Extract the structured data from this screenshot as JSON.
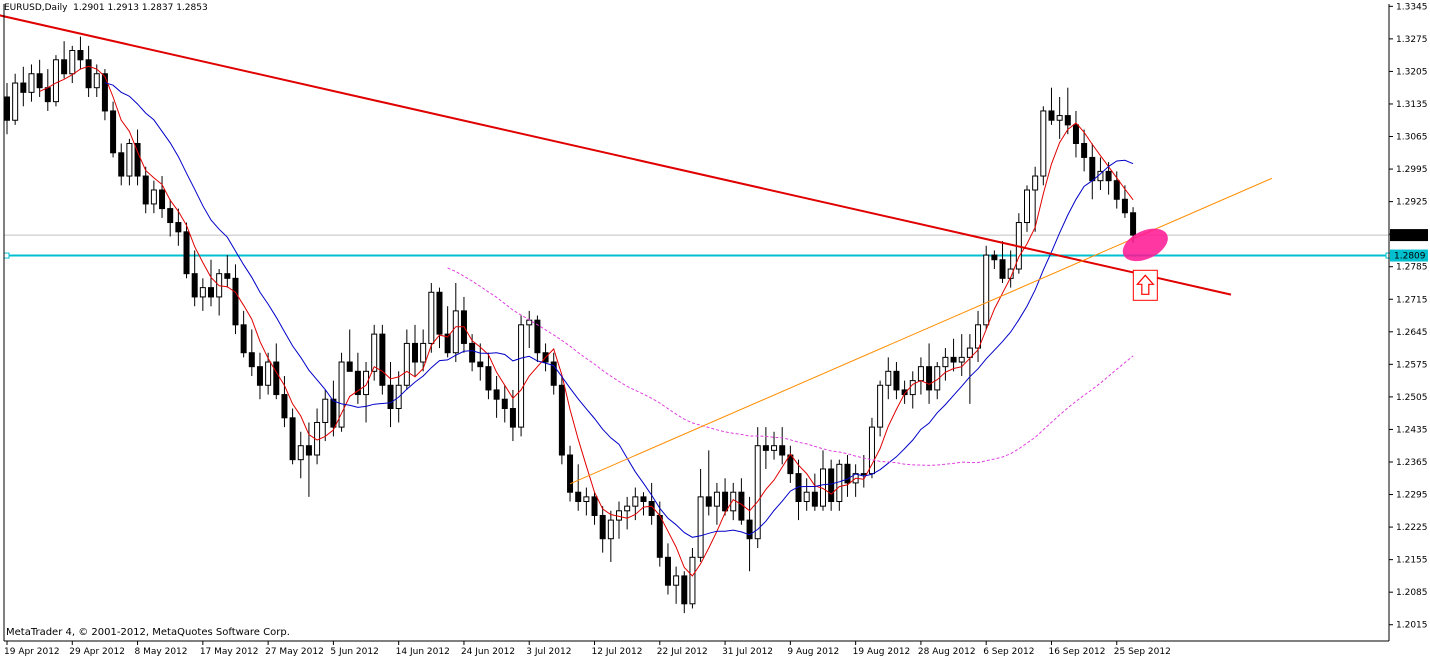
{
  "header": {
    "symbol": "EURUSD,Daily",
    "ohlc": "1.2901 1.2913 1.2837 1.2853"
  },
  "footer": {
    "copyright": "MetaTrader 4, © 2001-2012, MetaQuotes Software Corp."
  },
  "colors": {
    "background": "#ffffff",
    "bull_body": "#ffffff",
    "bear_body": "#000000",
    "wick": "#000000",
    "ma_fast": "#e00000",
    "ma_slow": "#0000c8",
    "ma_long": "#e040e0",
    "trend_down": "#e00000",
    "trend_up": "#ff8c00",
    "support_line": "#00c0d0",
    "current_price_line": "#c0c0c0",
    "highlight": "#ff1493",
    "arrow": "#ff0000"
  },
  "icons": {
    "signal_arrow": "up-arrow-icon"
  },
  "chart_data": {
    "type": "candlestick",
    "symbol": "EURUSD",
    "timeframe": "Daily",
    "ylim": [
      1.198,
      1.335
    ],
    "y_ticks": [
      "1.3345",
      "1.3275",
      "1.3205",
      "1.3135",
      "1.3065",
      "1.2995",
      "1.2925",
      "1.2855",
      "1.2785",
      "1.2715",
      "1.2645",
      "1.2575",
      "1.2505",
      "1.2435",
      "1.2365",
      "1.2295",
      "1.2225",
      "1.2155",
      "1.2085",
      "1.2015"
    ],
    "x_ticks": [
      {
        "i": 0,
        "label": "19 Apr 2012"
      },
      {
        "i": 8,
        "label": "29 Apr 2012"
      },
      {
        "i": 16,
        "label": "8 May 2012"
      },
      {
        "i": 24,
        "label": "17 May 2012"
      },
      {
        "i": 32,
        "label": "27 May 2012"
      },
      {
        "i": 40,
        "label": "5 Jun 2012"
      },
      {
        "i": 48,
        "label": "14 Jun 2012"
      },
      {
        "i": 56,
        "label": "24 Jun 2012"
      },
      {
        "i": 64,
        "label": "3 Jul 2012"
      },
      {
        "i": 72,
        "label": "12 Jul 2012"
      },
      {
        "i": 80,
        "label": "22 Jul 2012"
      },
      {
        "i": 88,
        "label": "31 Jul 2012"
      },
      {
        "i": 96,
        "label": "9 Aug 2012"
      },
      {
        "i": 104,
        "label": "19 Aug 2012"
      },
      {
        "i": 112,
        "label": "28 Aug 2012"
      },
      {
        "i": 120,
        "label": "6 Sep 2012"
      },
      {
        "i": 128,
        "label": "16 Sep 2012"
      },
      {
        "i": 136,
        "label": "25 Sep 2012"
      }
    ],
    "candles": [
      [
        1.315,
        1.318,
        1.307,
        1.31
      ],
      [
        1.31,
        1.32,
        1.309,
        1.318
      ],
      [
        1.318,
        1.3215,
        1.313,
        1.316
      ],
      [
        1.316,
        1.322,
        1.314,
        1.32
      ],
      [
        1.32,
        1.323,
        1.315,
        1.317
      ],
      [
        1.317,
        1.321,
        1.312,
        1.314
      ],
      [
        1.314,
        1.324,
        1.313,
        1.323
      ],
      [
        1.323,
        1.327,
        1.319,
        1.32
      ],
      [
        1.32,
        1.326,
        1.318,
        1.325
      ],
      [
        1.325,
        1.328,
        1.321,
        1.323
      ],
      [
        1.323,
        1.326,
        1.315,
        1.317
      ],
      [
        1.317,
        1.322,
        1.315,
        1.32
      ],
      [
        1.32,
        1.321,
        1.31,
        1.312
      ],
      [
        1.312,
        1.314,
        1.302,
        1.303
      ],
      [
        1.303,
        1.305,
        1.296,
        1.298
      ],
      [
        1.298,
        1.306,
        1.296,
        1.305
      ],
      [
        1.305,
        1.308,
        1.296,
        1.298
      ],
      [
        1.298,
        1.3,
        1.29,
        1.292
      ],
      [
        1.292,
        1.297,
        1.29,
        1.295
      ],
      [
        1.295,
        1.298,
        1.289,
        1.291
      ],
      [
        1.291,
        1.293,
        1.285,
        1.288
      ],
      [
        1.288,
        1.291,
        1.283,
        1.286
      ],
      [
        1.286,
        1.288,
        1.276,
        1.277
      ],
      [
        1.277,
        1.282,
        1.27,
        1.272
      ],
      [
        1.272,
        1.276,
        1.269,
        1.274
      ],
      [
        1.274,
        1.28,
        1.27,
        1.272
      ],
      [
        1.272,
        1.278,
        1.268,
        1.277
      ],
      [
        1.277,
        1.281,
        1.274,
        1.276
      ],
      [
        1.276,
        1.279,
        1.264,
        1.266
      ],
      [
        1.266,
        1.269,
        1.259,
        1.26
      ],
      [
        1.26,
        1.265,
        1.255,
        1.257
      ],
      [
        1.257,
        1.26,
        1.25,
        1.253
      ],
      [
        1.253,
        1.26,
        1.251,
        1.258
      ],
      [
        1.258,
        1.262,
        1.25,
        1.251
      ],
      [
        1.251,
        1.255,
        1.244,
        1.246
      ],
      [
        1.246,
        1.248,
        1.236,
        1.237
      ],
      [
        1.237,
        1.243,
        1.233,
        1.24
      ],
      [
        1.24,
        1.245,
        1.229,
        1.238
      ],
      [
        1.238,
        1.248,
        1.236,
        1.245
      ],
      [
        1.245,
        1.252,
        1.241,
        1.25
      ],
      [
        1.25,
        1.254,
        1.242,
        1.244
      ],
      [
        1.244,
        1.26,
        1.243,
        1.258
      ],
      [
        1.258,
        1.265,
        1.256,
        1.256
      ],
      [
        1.256,
        1.26,
        1.249,
        1.251
      ],
      [
        1.251,
        1.258,
        1.245,
        1.256
      ],
      [
        1.256,
        1.266,
        1.254,
        1.264
      ],
      [
        1.264,
        1.266,
        1.251,
        1.253
      ],
      [
        1.253,
        1.258,
        1.244,
        1.248
      ],
      [
        1.248,
        1.256,
        1.245,
        1.253
      ],
      [
        1.253,
        1.265,
        1.252,
        1.262
      ],
      [
        1.262,
        1.266,
        1.255,
        1.258
      ],
      [
        1.258,
        1.265,
        1.256,
        1.262
      ],
      [
        1.262,
        1.275,
        1.26,
        1.273
      ],
      [
        1.273,
        1.274,
        1.261,
        1.264
      ],
      [
        1.264,
        1.27,
        1.259,
        1.26
      ],
      [
        1.26,
        1.275,
        1.258,
        1.269
      ],
      [
        1.269,
        1.272,
        1.26,
        1.262
      ],
      [
        1.262,
        1.264,
        1.256,
        1.258
      ],
      [
        1.258,
        1.262,
        1.254,
        1.257
      ],
      [
        1.257,
        1.26,
        1.25,
        1.252
      ],
      [
        1.252,
        1.255,
        1.246,
        1.25
      ],
      [
        1.25,
        1.253,
        1.245,
        1.248
      ],
      [
        1.248,
        1.252,
        1.241,
        1.244
      ],
      [
        1.244,
        1.268,
        1.242,
        1.266
      ],
      [
        1.266,
        1.269,
        1.261,
        1.267
      ],
      [
        1.267,
        1.268,
        1.258,
        1.26
      ],
      [
        1.26,
        1.262,
        1.256,
        1.258
      ],
      [
        1.258,
        1.26,
        1.251,
        1.253
      ],
      [
        1.253,
        1.255,
        1.236,
        1.238
      ],
      [
        1.238,
        1.24,
        1.228,
        1.23
      ],
      [
        1.23,
        1.236,
        1.226,
        1.228
      ],
      [
        1.228,
        1.231,
        1.225,
        1.229
      ],
      [
        1.229,
        1.23,
        1.223,
        1.225
      ],
      [
        1.225,
        1.227,
        1.217,
        1.22
      ],
      [
        1.22,
        1.226,
        1.215,
        1.224
      ],
      [
        1.224,
        1.228,
        1.22,
        1.226
      ],
      [
        1.226,
        1.229,
        1.222,
        1.227
      ],
      [
        1.227,
        1.231,
        1.224,
        1.229
      ],
      [
        1.229,
        1.23,
        1.225,
        1.228
      ],
      [
        1.228,
        1.232,
        1.223,
        1.225
      ],
      [
        1.225,
        1.228,
        1.214,
        1.216
      ],
      [
        1.216,
        1.219,
        1.208,
        1.21
      ],
      [
        1.21,
        1.214,
        1.206,
        1.212
      ],
      [
        1.212,
        1.213,
        1.204,
        1.206
      ],
      [
        1.206,
        1.218,
        1.205,
        1.216
      ],
      [
        1.216,
        1.235,
        1.215,
        1.229
      ],
      [
        1.229,
        1.239,
        1.225,
        1.227
      ],
      [
        1.227,
        1.232,
        1.223,
        1.23
      ],
      [
        1.23,
        1.233,
        1.225,
        1.226
      ],
      [
        1.226,
        1.232,
        1.224,
        1.23
      ],
      [
        1.23,
        1.233,
        1.223,
        1.224
      ],
      [
        1.224,
        1.229,
        1.213,
        1.22
      ],
      [
        1.22,
        1.244,
        1.218,
        1.24
      ],
      [
        1.24,
        1.244,
        1.235,
        1.239
      ],
      [
        1.239,
        1.243,
        1.237,
        1.24
      ],
      [
        1.24,
        1.244,
        1.236,
        1.238
      ],
      [
        1.238,
        1.24,
        1.232,
        1.234
      ],
      [
        1.234,
        1.237,
        1.224,
        1.228
      ],
      [
        1.228,
        1.233,
        1.226,
        1.23
      ],
      [
        1.23,
        1.234,
        1.226,
        1.227
      ],
      [
        1.227,
        1.239,
        1.226,
        1.235
      ],
      [
        1.235,
        1.237,
        1.226,
        1.228
      ],
      [
        1.228,
        1.237,
        1.226,
        1.236
      ],
      [
        1.236,
        1.238,
        1.229,
        1.232
      ],
      [
        1.232,
        1.236,
        1.229,
        1.234
      ],
      [
        1.234,
        1.238,
        1.231,
        1.234
      ],
      [
        1.234,
        1.246,
        1.233,
        1.244
      ],
      [
        1.244,
        1.254,
        1.242,
        1.253
      ],
      [
        1.253,
        1.259,
        1.25,
        1.256
      ],
      [
        1.256,
        1.258,
        1.25,
        1.252
      ],
      [
        1.252,
        1.254,
        1.249,
        1.251
      ],
      [
        1.251,
        1.256,
        1.248,
        1.254
      ],
      [
        1.254,
        1.259,
        1.251,
        1.257
      ],
      [
        1.257,
        1.262,
        1.249,
        1.252
      ],
      [
        1.252,
        1.258,
        1.25,
        1.257
      ],
      [
        1.257,
        1.261,
        1.254,
        1.259
      ],
      [
        1.259,
        1.263,
        1.256,
        1.258
      ],
      [
        1.258,
        1.264,
        1.255,
        1.259
      ],
      [
        1.259,
        1.264,
        1.249,
        1.261
      ],
      [
        1.261,
        1.269,
        1.258,
        1.266
      ],
      [
        1.266,
        1.283,
        1.265,
        1.281
      ],
      [
        1.281,
        1.282,
        1.278,
        1.28
      ],
      [
        1.28,
        1.284,
        1.275,
        1.276
      ],
      [
        1.276,
        1.282,
        1.274,
        1.278
      ],
      [
        1.278,
        1.29,
        1.277,
        1.288
      ],
      [
        1.288,
        1.296,
        1.286,
        1.295
      ],
      [
        1.295,
        1.3,
        1.286,
        1.298
      ],
      [
        1.298,
        1.313,
        1.296,
        1.312
      ],
      [
        1.312,
        1.317,
        1.309,
        1.31
      ],
      [
        1.31,
        1.315,
        1.306,
        1.311
      ],
      [
        1.311,
        1.317,
        1.307,
        1.309
      ],
      [
        1.309,
        1.312,
        1.302,
        1.305
      ],
      [
        1.305,
        1.308,
        1.299,
        1.302
      ],
      [
        1.302,
        1.305,
        1.293,
        1.297
      ],
      [
        1.297,
        1.302,
        1.295,
        1.299
      ],
      [
        1.299,
        1.301,
        1.294,
        1.297
      ],
      [
        1.297,
        1.299,
        1.291,
        1.293
      ],
      [
        1.293,
        1.296,
        1.289,
        1.2901
      ],
      [
        1.2901,
        1.2913,
        1.2837,
        1.2853
      ]
    ],
    "indicators": [
      {
        "type": "moving_average",
        "color_key": "ma_fast",
        "period": 5
      },
      {
        "type": "moving_average",
        "color_key": "ma_slow",
        "period": 13
      },
      {
        "type": "moving_average",
        "color_key": "ma_long",
        "period": 55,
        "style": "dashed"
      }
    ],
    "lines": [
      {
        "type": "trendline",
        "color_key": "trend_down",
        "from": [
          -2,
          1.333
        ],
        "to": [
          150,
          1.2725
        ]
      },
      {
        "type": "trendline",
        "color_key": "trend_up",
        "from": [
          69,
          1.2318
        ],
        "to": [
          155,
          1.2975
        ]
      },
      {
        "type": "horizontal",
        "color_key": "support_line",
        "price": 1.2809,
        "label": "1.2809"
      },
      {
        "type": "horizontal",
        "color_key": "current_price_line",
        "price": 1.2853,
        "label": "1.2853"
      }
    ],
    "annotations": [
      {
        "type": "ellipse",
        "color_key": "highlight",
        "center": [
          139.5,
          1.2832
        ]
      },
      {
        "type": "up_arrow",
        "color_key": "arrow",
        "center": [
          139.5,
          1.2745
        ]
      }
    ],
    "grid": false,
    "legend": "none"
  }
}
